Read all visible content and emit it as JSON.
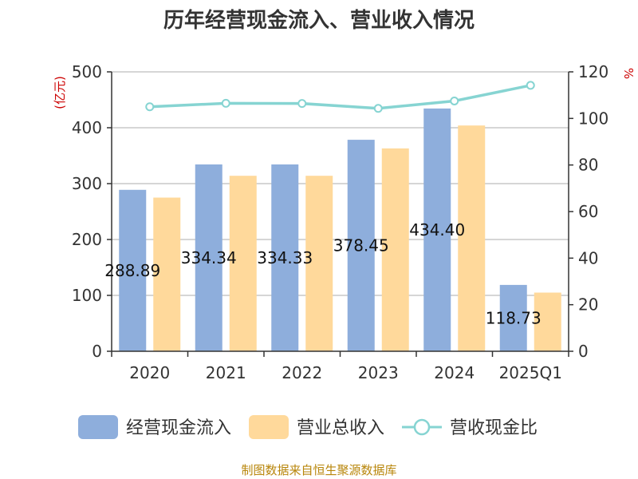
{
  "chart_data": {
    "type": "bar",
    "title": "历年经营现金流入、营业收入情况",
    "categories": [
      "2020",
      "2021",
      "2022",
      "2023",
      "2024",
      "2025Q1"
    ],
    "series": [
      {
        "name": "经营现金流入",
        "type": "bar",
        "axis": "left",
        "color": "#8eaedc",
        "values": [
          288.89,
          334.34,
          334.33,
          378.45,
          434.4,
          118.73
        ],
        "data_labels": [
          "288.89",
          "334.34",
          "334.33",
          "378.45",
          "434.40",
          "118.73"
        ]
      },
      {
        "name": "营业总收入",
        "type": "bar",
        "axis": "left",
        "color": "#ffd99b",
        "values": [
          275,
          314,
          314,
          363,
          404,
          105
        ]
      },
      {
        "name": "营收现金比",
        "type": "line",
        "axis": "right",
        "color": "#86d4d2",
        "values": [
          105,
          106.5,
          106.4,
          104.3,
          107.5,
          114.2
        ]
      }
    ],
    "left_axis": {
      "unit": "(亿元)",
      "ylim": [
        0,
        500
      ],
      "ticks": [
        "0",
        "100",
        "200",
        "300",
        "400",
        "500"
      ]
    },
    "right_axis": {
      "unit": "%",
      "ylim": [
        0,
        120
      ],
      "ticks": [
        "0",
        "20",
        "40",
        "60",
        "80",
        "100",
        "120"
      ]
    },
    "grid": true,
    "legend": "bottom"
  },
  "source": "制图数据来自恒生聚源数据库"
}
